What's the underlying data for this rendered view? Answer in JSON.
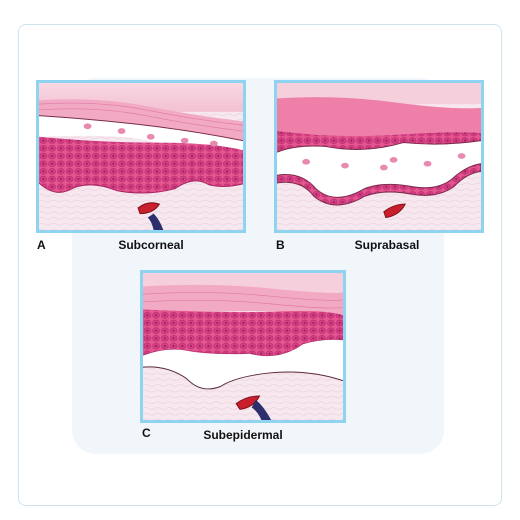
{
  "panels": [
    {
      "letter": "A",
      "label": "Subcorneal"
    },
    {
      "letter": "B",
      "label": "Suprabasal"
    },
    {
      "letter": "C",
      "label": "Subepidermal"
    }
  ],
  "colors": {
    "frame": "#8ed3ef",
    "stratum_corneum": "#f2a9c3",
    "epidermis": "#e5558f",
    "cell": "#d33d84",
    "dermis": "#f7e8ef",
    "blister": "#ffffff",
    "vessel": "#c91f2c"
  }
}
